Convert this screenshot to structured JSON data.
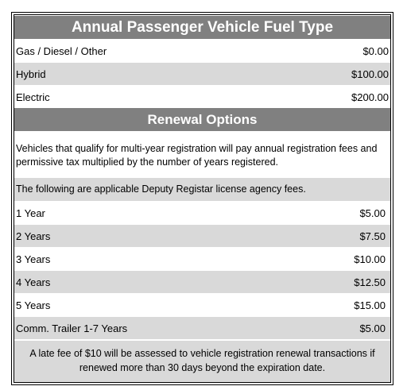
{
  "fuel": {
    "title": "Annual Passenger Vehicle Fuel Type",
    "rows": [
      {
        "label": "Gas / Diesel / Other",
        "value": "$0.00"
      },
      {
        "label": "Hybrid",
        "value": "$100.00"
      },
      {
        "label": "Electric",
        "value": "$200.00"
      }
    ]
  },
  "renewal": {
    "title": "Renewal Options",
    "intro": "Vehicles that qualify for multi-year registration will pay annual registration fees and permissive tax multiplied by the number of years registered.",
    "deputy_note": "The following are applicable Deputy Registar license agency fees.",
    "rows": [
      {
        "label": "1 Year",
        "value": "$5.00"
      },
      {
        "label": "2 Years",
        "value": "$7.50"
      },
      {
        "label": "3 Years",
        "value": "$10.00"
      },
      {
        "label": "4 Years",
        "value": "$12.50"
      },
      {
        "label": "5 Years",
        "value": "$15.00"
      },
      {
        "label": "Comm. Trailer 1-7 Years",
        "value": "$5.00"
      }
    ],
    "late_fee": "A late fee of $10 will be assessed to vehicle registration renewal transactions if renewed more than 30 days beyond the expiration date."
  },
  "colors": {
    "header_bg": "#808080",
    "stripe": "#d9d9d9"
  }
}
